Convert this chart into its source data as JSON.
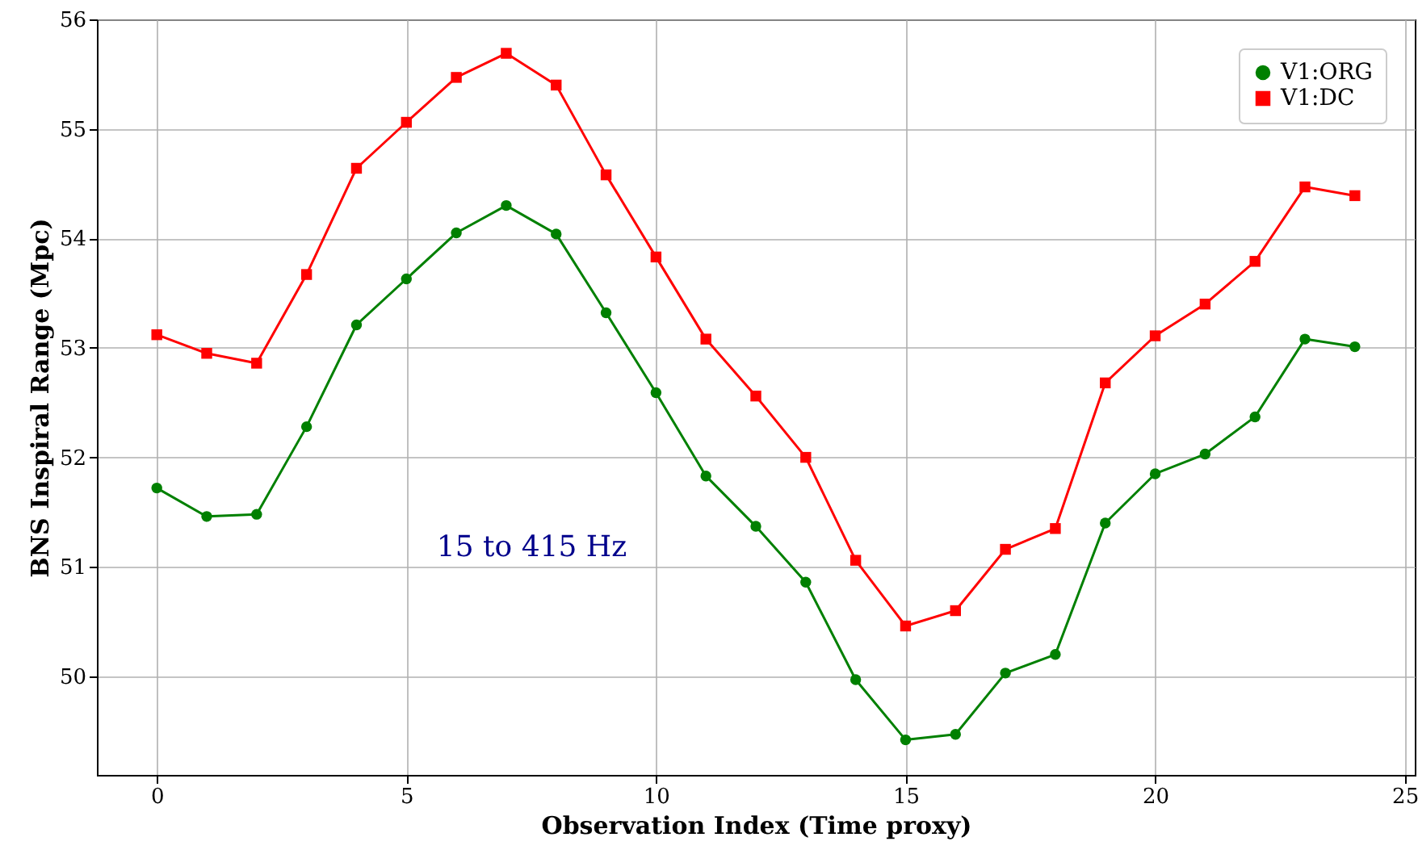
{
  "chart_data": {
    "type": "line",
    "xlabel": "Observation Index (Time proxy)",
    "ylabel": "BNS Inspiral Range (Mpc)",
    "x": [
      0,
      1,
      2,
      3,
      4,
      5,
      6,
      7,
      8,
      9,
      10,
      11,
      12,
      13,
      14,
      15,
      16,
      17,
      18,
      19,
      20,
      21,
      22,
      23,
      24
    ],
    "series": [
      {
        "name": "V1:ORG",
        "color": "#008000",
        "marker": "circle",
        "values": [
          51.72,
          51.46,
          51.48,
          52.28,
          53.21,
          53.63,
          54.05,
          54.3,
          54.04,
          53.32,
          52.59,
          51.83,
          51.37,
          50.86,
          49.97,
          49.42,
          49.47,
          50.03,
          50.2,
          51.4,
          51.85,
          52.03,
          52.37,
          53.08,
          53.01
        ]
      },
      {
        "name": "V1:DC",
        "color": "#ff0000",
        "marker": "square",
        "values": [
          53.12,
          52.95,
          52.86,
          53.67,
          54.64,
          55.06,
          55.47,
          55.69,
          55.4,
          54.58,
          53.83,
          53.08,
          52.56,
          52.0,
          51.06,
          50.46,
          50.6,
          51.16,
          51.35,
          52.68,
          53.11,
          53.4,
          53.79,
          54.47,
          54.39
        ]
      }
    ],
    "xlim": [
      -1.2,
      25.2
    ],
    "xticks": [
      0,
      5,
      10,
      15,
      20,
      25
    ],
    "ylim": [
      49.1,
      56
    ],
    "yticks": [
      50,
      51,
      52,
      53,
      54,
      55,
      56
    ],
    "grid": true,
    "legend": "top right",
    "line_style": "solid",
    "annotations": [
      "15 to 415 Hz"
    ]
  }
}
